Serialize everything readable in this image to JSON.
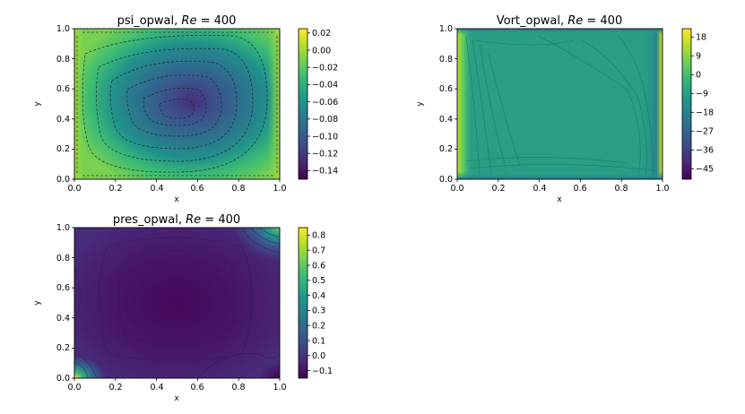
{
  "chart_data": [
    {
      "type": "heatmap",
      "title_main": "psi_opwal, ",
      "title_math": "Re",
      "title_tail": " = 400",
      "xlabel": "x",
      "ylabel": "y",
      "xlim": [
        0.0,
        1.0
      ],
      "ylim": [
        0.0,
        1.0
      ],
      "x_ticks": [
        "0.0",
        "0.2",
        "0.4",
        "0.6",
        "0.8",
        "1.0"
      ],
      "y_ticks": [
        "0.0",
        "0.2",
        "0.4",
        "0.6",
        "0.8",
        "1.0"
      ],
      "colorbar_range": [
        -0.15,
        0.025
      ],
      "colorbar_ticks": [
        "0.02",
        "0.00",
        "−0.02",
        "−0.04",
        "−0.06",
        "−0.08",
        "−0.10",
        "−0.12",
        "−0.14"
      ],
      "colorbar_values": [
        0.02,
        0.0,
        -0.02,
        -0.04,
        -0.06,
        -0.08,
        -0.1,
        -0.12,
        -0.14
      ],
      "colormap": "viridis",
      "field": "streamfunction",
      "contour_lines": "dashed"
    },
    {
      "type": "heatmap",
      "title_main": "Vort_opwal, ",
      "title_math": "Re",
      "title_tail": " = 400",
      "xlabel": "x",
      "ylabel": "y",
      "xlim": [
        0.0,
        1.0
      ],
      "ylim": [
        0.0,
        1.0
      ],
      "x_ticks": [
        "0.0",
        "0.2",
        "0.4",
        "0.6",
        "0.8",
        "1.0"
      ],
      "y_ticks": [
        "0.0",
        "0.2",
        "0.4",
        "0.6",
        "0.8",
        "1.0"
      ],
      "colorbar_range": [
        -50,
        22
      ],
      "colorbar_ticks": [
        "18",
        "9",
        "0",
        "−9",
        "−18",
        "−27",
        "−36",
        "−45"
      ],
      "colorbar_values": [
        18,
        9,
        0,
        -9,
        -18,
        -27,
        -36,
        -45
      ],
      "colormap": "viridis",
      "field": "vorticity",
      "contour_lines": "thin"
    },
    {
      "type": "heatmap",
      "title_main": "pres_opwal, ",
      "title_math": "Re",
      "title_tail": " = 400",
      "xlabel": "x",
      "ylabel": "y",
      "xlim": [
        0.0,
        1.0
      ],
      "ylim": [
        0.0,
        1.0
      ],
      "x_ticks": [
        "0.0",
        "0.2",
        "0.4",
        "0.6",
        "0.8",
        "1.0"
      ],
      "y_ticks": [
        "0.0",
        "0.2",
        "0.4",
        "0.6",
        "0.8",
        "1.0"
      ],
      "colorbar_range": [
        -0.15,
        0.85
      ],
      "colorbar_ticks": [
        "0.8",
        "0.7",
        "0.6",
        "0.5",
        "0.4",
        "0.3",
        "0.2",
        "0.1",
        "0.0",
        "−0.1"
      ],
      "colorbar_values": [
        0.8,
        0.7,
        0.6,
        0.5,
        0.4,
        0.3,
        0.2,
        0.1,
        0.0,
        -0.1
      ],
      "colormap": "viridis",
      "field": "pressure",
      "contour_lines": "thin"
    }
  ]
}
